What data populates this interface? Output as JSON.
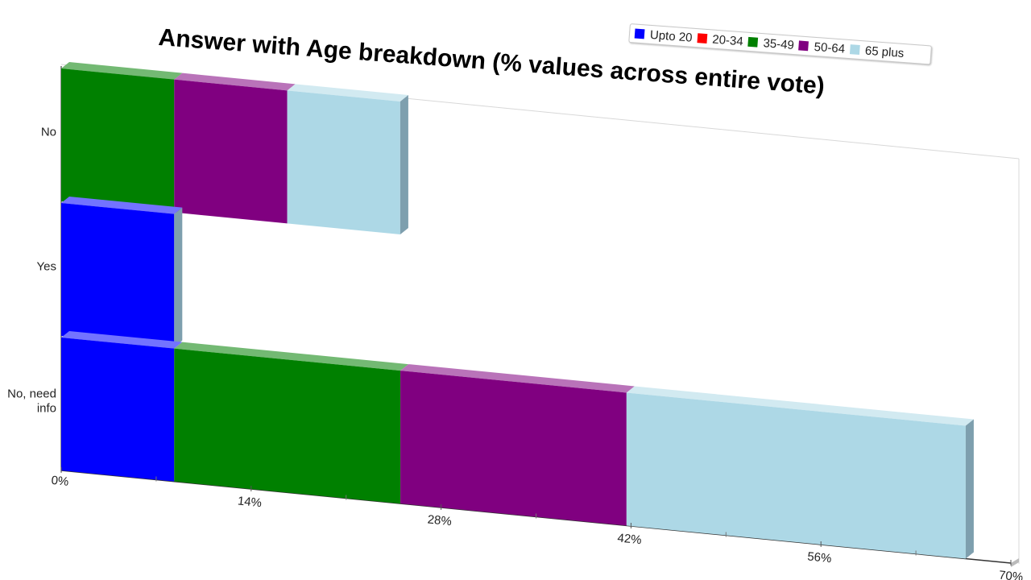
{
  "chart_data": {
    "type": "bar",
    "orientation": "horizontal",
    "stacked": true,
    "three_d": true,
    "title": "Answer with Age breakdown (% values across entire vote)",
    "categories": [
      "No",
      "Yes",
      "No, need info"
    ],
    "series": [
      {
        "name": "Upto 20",
        "color": "#0000ff",
        "values": [
          0,
          8.33,
          8.33
        ]
      },
      {
        "name": "20-34",
        "color": "#ff0000",
        "values": [
          0,
          0,
          0
        ]
      },
      {
        "name": "35-49",
        "color": "#008000",
        "values": [
          8.33,
          0,
          16.67
        ]
      },
      {
        "name": "50-64",
        "color": "#800080",
        "values": [
          8.33,
          0,
          16.67
        ]
      },
      {
        "name": "65 plus",
        "color": "#add8e6",
        "values": [
          8.33,
          0,
          25.0
        ]
      }
    ],
    "xlim": [
      0,
      70
    ],
    "x_ticks": [
      "0%",
      "14%",
      "28%",
      "42%",
      "56%",
      "70%"
    ],
    "legend_position": "top-right",
    "grid": false
  }
}
